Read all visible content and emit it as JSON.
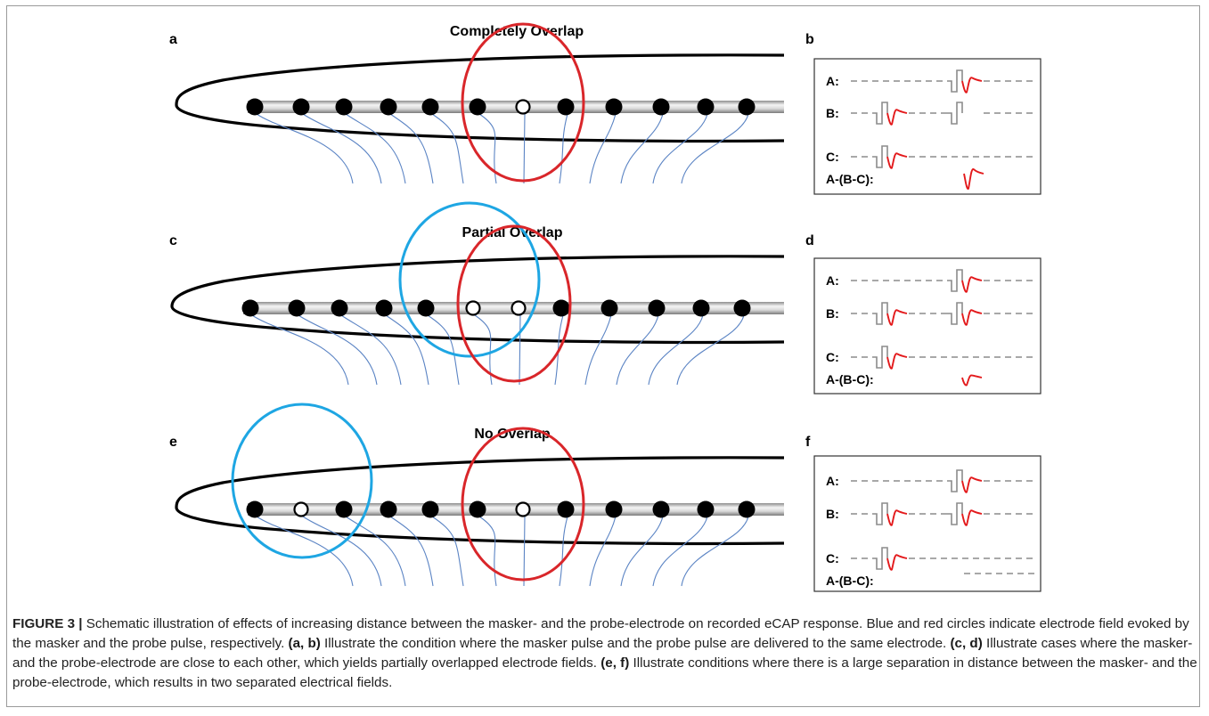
{
  "colors": {
    "masker_field": "#1ea6e3",
    "probe_field": "#d9262a",
    "response": "#e31a1c",
    "pulse": "#8c8c8c",
    "nerve": "#5b84c4",
    "cochlea_outline": "#000000",
    "electrode_array": "#b4b4b4"
  },
  "panels": [
    {
      "letter": "a",
      "title": "Completely Overlap",
      "case": "complete"
    },
    {
      "letter": "c",
      "title": "Partial Overlap",
      "case": "partial"
    },
    {
      "letter": "e",
      "title": "No Overlap",
      "case": "none"
    }
  ],
  "traces": [
    {
      "letter": "b",
      "rows": [
        "A:",
        "B:",
        "C:",
        "A-(B-C):"
      ]
    },
    {
      "letter": "d",
      "rows": [
        "A:",
        "B:",
        "C:",
        "A-(B-C):"
      ]
    },
    {
      "letter": "f",
      "rows": [
        "A:",
        "B:",
        "C:",
        "A-(B-C):"
      ]
    }
  ],
  "caption": {
    "label": "FIGURE 3 |",
    "text1": " Schematic illustration of effects of increasing distance between the masker- and the probe-electrode on recorded eCAP response.  Blue and red circles indicate electrode field evoked by the masker and the probe pulse, respectively. ",
    "ref1": "(a, b)",
    "text2": " Illustrate the condition where the masker pulse and the probe pulse are delivered to the same electrode. ",
    "ref2": "(c, d)",
    "text3": " Illustrate cases where the masker- and the probe-electrode are close to each other, which yields partially overlapped electrode fields. ",
    "ref3": "(e, f)",
    "text4": " Illustrate conditions where there is a large separation in distance between the masker- and the probe-electrode, which results in two separated electrical fields."
  }
}
